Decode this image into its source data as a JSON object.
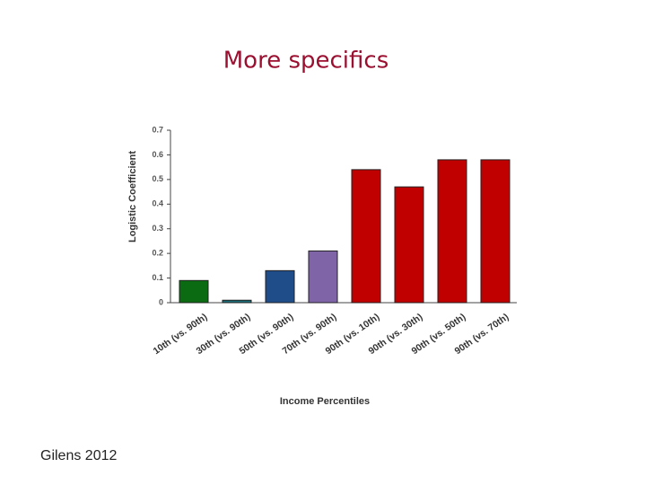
{
  "chart_data": {
    "type": "bar",
    "title": "More specifics",
    "x_label": "Income Percentiles",
    "y_label": "Logistic Coefficient",
    "categories": [
      "10th (vs. 90th)",
      "30th (vs. 90th)",
      "50th (vs. 90th)",
      "70th (vs. 90th)",
      "90th (vs. 10th)",
      "90th (vs. 30th)",
      "90th (vs. 50th)",
      "90th (vs. 70th)"
    ],
    "values": [
      0.09,
      0.01,
      0.13,
      0.21,
      0.54,
      0.47,
      0.58,
      0.58
    ],
    "colors": [
      "#0b6b12",
      "#1c6f78",
      "#1f4d8a",
      "#8064a8",
      "#c00000",
      "#c00000",
      "#c00000",
      "#c00000"
    ],
    "ylim": [
      0,
      0.7
    ],
    "yticks": [
      0,
      0.1,
      0.2,
      0.3,
      0.4,
      0.5,
      0.6,
      0.7
    ],
    "grid": false
  },
  "source": "Gilens 2012"
}
